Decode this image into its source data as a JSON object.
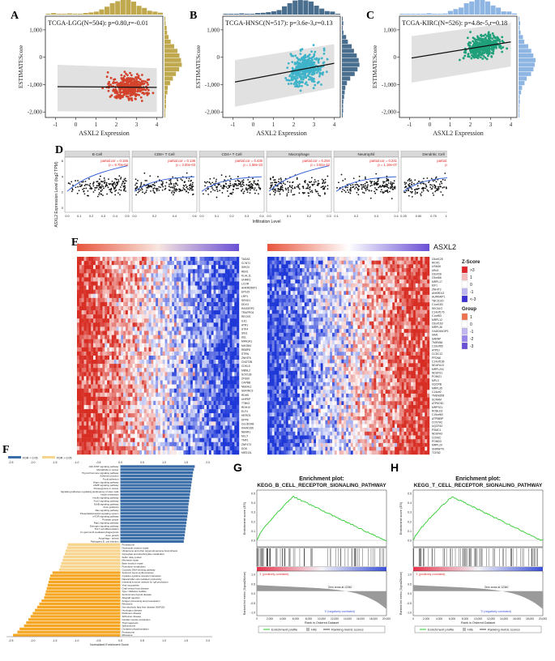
{
  "panels": {
    "A": {
      "letter": "A",
      "title": "TCGA-LGG(N=504): p=0.80,r=-0.01",
      "xlabel": "ASXL2 Expression",
      "ylabel": "ESTIMATEScore",
      "yticks": [
        "1,000",
        "0",
        "-1,000",
        "-2,000"
      ],
      "xticks": [
        "-1",
        "0",
        "1",
        "2",
        "3",
        "4"
      ],
      "point_color": "#d3432b",
      "hist_color": "#bfa84e"
    },
    "B": {
      "letter": "B",
      "title": "TCGA-HNSC(N=517): p=3.6e-3,r=0.13",
      "xlabel": "ASXL2 Expression",
      "ylabel": "ESTIMATEScore",
      "yticks": [
        "1,000",
        "0",
        "-1,000",
        "-2,000"
      ],
      "xticks": [
        "-1",
        "0",
        "1",
        "2",
        "3",
        "4"
      ],
      "point_color": "#3fb3c9",
      "hist_color": "#4a6e8e"
    },
    "C": {
      "letter": "C",
      "title": "TCGA-KIRC(N=526): p=4.8e-5,r=0.18",
      "xlabel": "ASXL2 Expression",
      "ylabel": "ESTIMATEScore",
      "yticks": [
        "1,000",
        "0",
        "-1,000",
        "-2,000"
      ],
      "xticks": [
        "-1",
        "0",
        "1",
        "2",
        "3",
        "4"
      ],
      "point_color": "#1fa07a",
      "hist_color": "#8fb5e3"
    },
    "D": {
      "letter": "D",
      "ylabel": "ASXL2 Expression Level (log2 TPM)",
      "xlabel": "Infiltration Level",
      "facets": [
        {
          "name": "B Cell",
          "cor": "partial.cor = 0.155",
          "p": "p = 6.70e-04"
        },
        {
          "name": "CD8+ T Cell",
          "cor": "partial.cor = 0.136",
          "p": "p = 3.00e-03"
        },
        {
          "name": "CD4+ T Cell",
          "cor": "partial.cor = 0.435",
          "p": "p = 1.58e-23"
        },
        {
          "name": "Macrophage",
          "cor": "partial.cor = 0.284",
          "p": "p = 3.81e-10"
        },
        {
          "name": "Neutrophil",
          "cor": "partial.cor = 0.241",
          "p": "p = 1.19e-07"
        },
        {
          "name": "Dendritic Cell",
          "cor": "partial.cor = 0.351",
          "p": "p = 2.74e-15"
        }
      ],
      "xticks": [
        [
          "0.0",
          "0.1",
          "0.2",
          "0.3",
          "0.4",
          "0.5"
        ],
        [
          "0.0",
          "0.2",
          "0.4",
          "0.6"
        ],
        [
          "0.0",
          "0.1",
          "0.2",
          "0.3",
          "0.4"
        ],
        [
          "0.0",
          "0.1",
          "0.2",
          "0.3"
        ],
        [
          "0.1",
          "0.2",
          "0.3",
          "0.4"
        ],
        [
          "0.25",
          "0.50",
          "0.75",
          "1.00",
          "1.25"
        ]
      ],
      "yticks": [
        "0",
        "2",
        "4",
        "6"
      ]
    },
    "E": {
      "letter": "E",
      "gene": "ASXL2",
      "left_genes": [
        "TADA3",
        "CCNT1",
        "SIRO3",
        "RBX1",
        "KLHL11",
        "UHMK1",
        "LCOR",
        "ANKRD50P1",
        "EPS15",
        "LRP1",
        "SENO1",
        "DDX3",
        "RASGRP2",
        "TRAPPC6",
        "RECKS",
        "ILK1",
        "ATR1",
        "STK4",
        "SIN1",
        "KEL",
        "MAN1A1",
        "MKOM4",
        "RBBP8",
        "STRN",
        "ZNHIT6",
        "CNOT2B",
        "CDKL5",
        "MBNL2",
        "SOX136",
        "ZFS69",
        "CAPBB",
        "NBEAL1",
        "SERINC3",
        "RDH5",
        "UNPEP",
        "TTBK2",
        "RDH10",
        "ELF4",
        "HERC5",
        "DPP8",
        "GLUD2AB",
        "KIAA0196",
        "NBHR1",
        "MLLT",
        "TMF1",
        "ZNF473",
        "DOK",
        "MED13L"
      ],
      "right_genes": [
        "C6orf125",
        "RIOK1",
        "USM26",
        "UBL5",
        "C6orf28",
        "C9orf66",
        "MRPL17",
        "EIF1",
        "ZNHIT2",
        "ANKRD13",
        "AURKAIP1",
        "TBC1D20",
        "C1orf183",
        "SEC61G",
        "C14orf176",
        "C1orf83",
        "MRPL12",
        "C6orf163",
        "MRPL36",
        "GADD45GIP1",
        "ISM1",
        "SARNP",
        "TMEM64",
        "C19orf65",
        "ATP5J",
        "CCDC12",
        "PFDN6",
        "C14orf166",
        "NDUFA13",
        "MRPL20C",
        "NDUFS1",
        "POMG1",
        "MPL3",
        "UQCRB",
        "MRPL35",
        "C14orf2",
        "TMEM208",
        "SCRAM",
        "ATP5O3C",
        "MRPS21",
        "ROBLD3",
        "C19orf60",
        "ATP5B5P",
        "COX7A2",
        "UQCR10",
        "PSMC1",
        "NDUFA3",
        "COX6C",
        "POMD3",
        "MRPL20",
        "SNRNP70",
        "TCEB2"
      ],
      "zscore_title": "Z-Score",
      "zscore_ticks": [
        ">3",
        "1",
        "0",
        "-1",
        "<-3"
      ],
      "group_title": "Group",
      "group_ticks": [
        "1",
        "0",
        "-1",
        "-2",
        "-3"
      ]
    },
    "F": {
      "letter": "F",
      "legend": [
        "FDR < 0.05",
        "FDR > 0.05"
      ],
      "xaxis_title": "Normalized Enrichment Score",
      "xticks": [
        "-2.5",
        "-2.0",
        "-1.5",
        "-1.0",
        "-0.5",
        "0.0",
        "0.5",
        "1.0",
        "1.5",
        "2.0"
      ],
      "top_ticks": [
        "-2.5",
        "-2.0",
        "-1.5",
        "-1.0",
        "-0.5",
        "0.0",
        "0.5",
        "1.0",
        "1.5",
        "2.0"
      ],
      "colors": {
        "pos": "#3b6ea8",
        "neg_sig": "#f5a623",
        "neg_nonsig": "#f7d58e"
      },
      "pathways": [
        {
          "name": "JAK-STAT signaling pathway",
          "nes": 1.7
        },
        {
          "name": "MicroRNAs in cancer",
          "nes": 1.68
        },
        {
          "name": "Thyroid hormone signaling pathway",
          "nes": 1.66
        },
        {
          "name": "Adherens junction",
          "nes": 1.65
        },
        {
          "name": "Focal adhesion",
          "nes": 1.64
        },
        {
          "name": "Hippo signaling pathway",
          "nes": 1.63
        },
        {
          "name": "cAMP signaling pathway",
          "nes": 1.62
        },
        {
          "name": "Proteoglycans in cancer",
          "nes": 1.61
        },
        {
          "name": "Signaling pathways regulating pluripotency of stem cells",
          "nes": 1.6
        },
        {
          "name": "Insulin resistance",
          "nes": 1.59
        },
        {
          "name": "Insulin signaling pathway",
          "nes": 1.58
        },
        {
          "name": "FoxO signaling pathway",
          "nes": 1.57
        },
        {
          "name": "ErbB signaling pathway",
          "nes": 1.56
        },
        {
          "name": "Axon guidance",
          "nes": 1.55
        },
        {
          "name": "Ras signaling pathway",
          "nes": 1.55
        },
        {
          "name": "Phosphatidylinositol signaling system",
          "nes": 1.54
        },
        {
          "name": "mTOR signaling pathway",
          "nes": 1.53
        },
        {
          "name": "Prostate cancer",
          "nes": 1.52
        },
        {
          "name": "Rap1 signaling pathway",
          "nes": 1.51
        },
        {
          "name": "Estrogen signaling pathway",
          "nes": 1.5
        },
        {
          "name": "Th17 cell differentiation",
          "nes": 1.49
        },
        {
          "name": "Fc gamma R-mediated phagocytosis",
          "nes": 1.48
        },
        {
          "name": "Axon growth",
          "nes": 1.47
        },
        {
          "name": "Autophagy - animal",
          "nes": 1.46
        },
        {
          "name": "Pathogenic E. coli infection",
          "nes": 1.45
        },
        {
          "name": "Proteasome",
          "nes": -1.2
        },
        {
          "name": "Nucleotide excision repair",
          "nes": -1.22
        },
        {
          "name": "Ubiquinone and other terpenoid-quinone biosynthesis",
          "nes": -1.25
        },
        {
          "name": "Glyoxylate and dicarboxylate metabolism",
          "nes": -1.27
        },
        {
          "name": "Sulfur relay system",
          "nes": -1.3
        },
        {
          "name": "Mismatch repair",
          "nes": -1.32
        },
        {
          "name": "Base excision repair",
          "nes": -1.35
        },
        {
          "name": "Pyrimidine metabolism",
          "nes": -1.37
        },
        {
          "name": "Cytosolic DNA-sensing pathway",
          "nes": -1.4
        },
        {
          "name": "Systemic lupus erythematosus",
          "nes": -1.55
        },
        {
          "name": "Cytokine-cytokine receptor interaction",
          "nes": -1.6
        },
        {
          "name": "Natural killer cell mediated cytotoxicity",
          "nes": -1.62
        },
        {
          "name": "Intestinal immune network for IgA production",
          "nes": -1.64
        },
        {
          "name": "Viral myocarditis",
          "nes": -1.66
        },
        {
          "name": "Graft-versus-host disease",
          "nes": -1.68
        },
        {
          "name": "Type I diabetes mellitus",
          "nes": -1.7
        },
        {
          "name": "Autoimmune thyroid disease",
          "nes": -1.72
        },
        {
          "name": "Allograft rejection",
          "nes": -1.74
        },
        {
          "name": "Antigen processing and presentation",
          "nes": -1.8
        },
        {
          "name": "Ribosome",
          "nes": -1.85
        },
        {
          "name": "Non-alcoholic fatty liver disease (NAFLD)",
          "nes": -1.9
        },
        {
          "name": "Huntington disease",
          "nes": -1.95
        },
        {
          "name": "Parkinson disease",
          "nes": -2.0
        },
        {
          "name": "Alzheimer disease",
          "nes": -2.05
        },
        {
          "name": "Cardiac muscle contraction",
          "nes": -2.1
        },
        {
          "name": "Thermogenesis",
          "nes": -2.15
        },
        {
          "name": "Spliceosome",
          "nes": -2.2
        },
        {
          "name": "Oxidative phosphorylation",
          "nes": -2.3
        },
        {
          "name": "Proteasome",
          "nes": -2.35
        },
        {
          "name": "Ribosome",
          "nes": -2.45
        }
      ]
    },
    "G": {
      "letter": "G",
      "title1": "Enrichment plot:",
      "title2": "KEGG_B_CELL_RECEPTOR_SIGNALING_PATHWAY",
      "ylabel1": "Enrichment score (ES)",
      "ylabel2": "Ranked list metric (Signal2Noise)",
      "xlabel": "Rank in Ordered Dataset",
      "pos_label": "'1' (positively correlated)",
      "neg_label": "'0' (negatively correlated)",
      "zero_cross": "Zero cross at 12340",
      "legend": [
        "Enrichment profile",
        "Hits",
        "Ranking metric scores"
      ],
      "es_yticks": [
        "0.5",
        "0.4",
        "0.3",
        "0.2",
        "0.1",
        "0.0"
      ],
      "rank_yticks": [
        "1.0",
        "0.5",
        "0.0",
        "-0.5",
        "-1.0"
      ],
      "xticks": [
        "0",
        "2,000",
        "4,000",
        "6,000",
        "8,000",
        "10,000",
        "12,000",
        "14,000",
        "16,000",
        "18,000",
        "20,000"
      ]
    },
    "H": {
      "letter": "H",
      "title1": "Enrichment plot:",
      "title2": "KEGG_T_CELL_RECEPTOR_SIGNALING_PATHWAY",
      "ylabel1": "Enrichment score (ES)",
      "ylabel2": "Ranked list metric (Signal2Noise)",
      "xlabel": "Rank in Ordered Dataset",
      "pos_label": "'1' (positively correlated)",
      "neg_label": "'0' (negatively correlated)",
      "zero_cross": "Zero cross at 12340",
      "legend": [
        "Enrichment profile",
        "Hits",
        "Ranking metric scores"
      ],
      "es_yticks": [
        "0.5",
        "0.4",
        "0.3",
        "0.2",
        "0.1",
        "0.0"
      ],
      "rank_yticks": [
        "1.0",
        "0.5",
        "0.0",
        "-0.5",
        "-1.0"
      ],
      "xticks": [
        "0",
        "2,000",
        "4,000",
        "6,000",
        "8,000",
        "10,000",
        "12,000",
        "14,000",
        "16,000",
        "18,000",
        "20,000"
      ]
    }
  }
}
